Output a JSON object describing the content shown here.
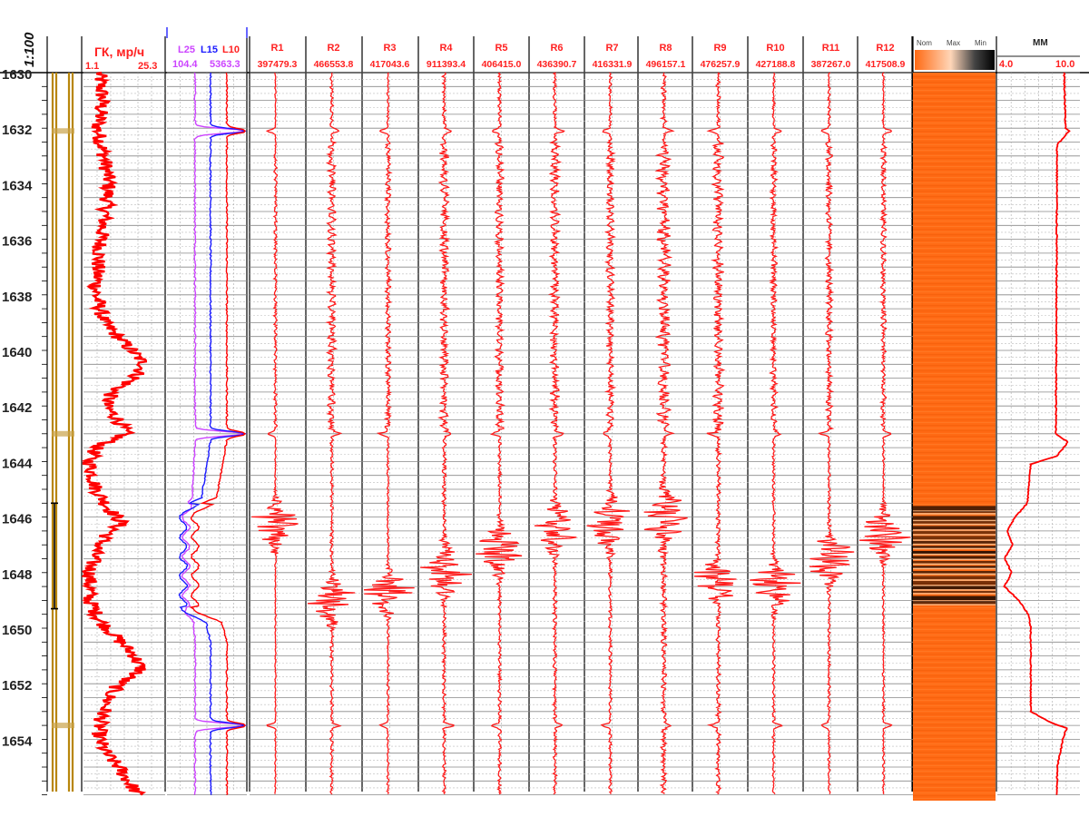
{
  "chart_data": {
    "type": "line",
    "title": "",
    "scale_label": "1:100",
    "depth_axis": {
      "label": "",
      "range": [
        1630,
        1656
      ],
      "tick_labels": [
        "1630",
        "1632",
        "1634",
        "1636",
        "1638",
        "1640",
        "1642",
        "1644",
        "1646",
        "1648",
        "1650",
        "1652",
        "1654"
      ]
    },
    "tracks": [
      {
        "name": "ГК, мр/ч",
        "min_label": "1.1",
        "max_label": "25.3",
        "color": "#ff0000"
      },
      {
        "name": "L25",
        "scale_label": "104.4",
        "color": "#cc44ff"
      },
      {
        "name": "L15",
        "color": "#1a1aff"
      },
      {
        "name": "L10",
        "scale_label": "5363.3",
        "color": "#ff0000"
      },
      {
        "name": "R1",
        "scale_label": "397479.3",
        "color": "#ff0000"
      },
      {
        "name": "R2",
        "scale_label": "466553.8",
        "color": "#ff0000"
      },
      {
        "name": "R3",
        "scale_label": "417043.6",
        "color": "#ff0000"
      },
      {
        "name": "R4",
        "scale_label": "911393.4",
        "color": "#ff0000"
      },
      {
        "name": "R5",
        "scale_label": "406415.0",
        "color": "#ff0000"
      },
      {
        "name": "R6",
        "scale_label": "436390.7",
        "color": "#ff0000"
      },
      {
        "name": "R7",
        "scale_label": "416331.9",
        "color": "#ff0000"
      },
      {
        "name": "R8",
        "scale_label": "496157.1",
        "color": "#ff0000"
      },
      {
        "name": "R9",
        "scale_label": "476257.9",
        "color": "#ff0000"
      },
      {
        "name": "R10",
        "scale_label": "427188.8",
        "color": "#ff0000"
      },
      {
        "name": "R11",
        "scale_label": "387267.0",
        "color": "#ff0000"
      },
      {
        "name": "R12",
        "scale_label": "417508.9",
        "color": "#ff0000"
      },
      {
        "name": "MM",
        "min_label": "4.0",
        "max_label": "10.0",
        "color": "#ff0000"
      }
    ],
    "image_track_legend": [
      "Nom",
      "Max",
      "Min"
    ],
    "depth_events": {
      "collar_depths": [
        1632.1,
        1643.0,
        1653.5
      ],
      "wet_zone": [
        1645.6,
        1649.2
      ],
      "marked_interval": [
        1645.5,
        1649.3
      ]
    },
    "gamma_profile": [
      [
        1630.0,
        6
      ],
      [
        1631.0,
        7
      ],
      [
        1632.0,
        5.5
      ],
      [
        1633.0,
        7.5
      ],
      [
        1634.0,
        9
      ],
      [
        1635.0,
        8
      ],
      [
        1636.0,
        6.5
      ],
      [
        1637.0,
        5.5
      ],
      [
        1638.0,
        5
      ],
      [
        1639.0,
        7.5
      ],
      [
        1640.0,
        16
      ],
      [
        1640.5,
        20
      ],
      [
        1641.0,
        17
      ],
      [
        1641.5,
        10
      ],
      [
        1642.0,
        8
      ],
      [
        1642.5,
        12
      ],
      [
        1643.0,
        14
      ],
      [
        1643.5,
        5
      ],
      [
        1644.0,
        3
      ],
      [
        1645.0,
        5
      ],
      [
        1645.7,
        9
      ],
      [
        1646.2,
        13
      ],
      [
        1646.7,
        8
      ],
      [
        1647.2,
        5
      ],
      [
        1648.0,
        3
      ],
      [
        1649.0,
        3
      ],
      [
        1649.7,
        6
      ],
      [
        1650.3,
        11
      ],
      [
        1651.0,
        17
      ],
      [
        1651.5,
        19
      ],
      [
        1652.0,
        12
      ],
      [
        1652.5,
        9
      ],
      [
        1653.0,
        7.5
      ],
      [
        1653.5,
        6
      ],
      [
        1654.0,
        6
      ],
      [
        1654.5,
        8
      ],
      [
        1655.0,
        12
      ],
      [
        1656.0,
        18
      ]
    ],
    "mm_profile": [
      [
        1630.0,
        9.6
      ],
      [
        1632.0,
        9.7
      ],
      [
        1632.1,
        10.0
      ],
      [
        1632.3,
        9.6
      ],
      [
        1632.6,
        9.0
      ],
      [
        1643.0,
        8.9
      ],
      [
        1643.3,
        9.9
      ],
      [
        1643.8,
        9.0
      ],
      [
        1644.1,
        6.8
      ],
      [
        1645.5,
        6.5
      ],
      [
        1646.0,
        5.5
      ],
      [
        1646.5,
        4.8
      ],
      [
        1647.0,
        5.3
      ],
      [
        1647.5,
        4.6
      ],
      [
        1648.0,
        5.2
      ],
      [
        1648.5,
        4.6
      ],
      [
        1649.0,
        5.8
      ],
      [
        1649.5,
        6.6
      ],
      [
        1650.0,
        6.8
      ],
      [
        1653.0,
        6.8
      ],
      [
        1653.4,
        8.5
      ],
      [
        1653.6,
        9.8
      ],
      [
        1654.0,
        9.5
      ],
      [
        1655.0,
        9.0
      ],
      [
        1656.0,
        9.0
      ]
    ]
  }
}
